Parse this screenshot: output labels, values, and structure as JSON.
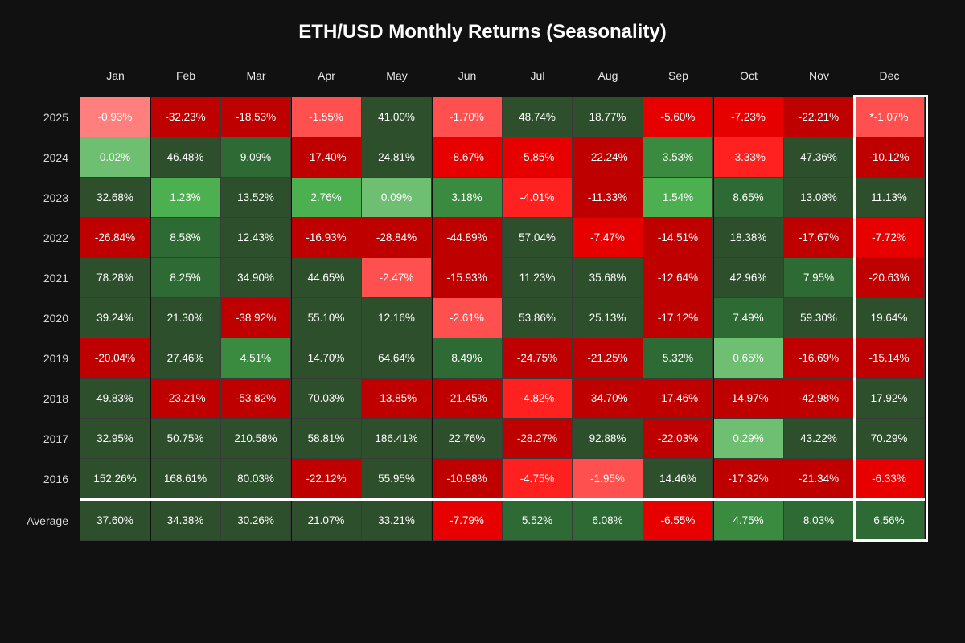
{
  "chart_data": {
    "type": "heatmap",
    "title": "ETH/USD Monthly Returns (Seasonality)",
    "columns": [
      "Jan",
      "Feb",
      "Mar",
      "Apr",
      "May",
      "Jun",
      "Jul",
      "Aug",
      "Sep",
      "Oct",
      "Nov",
      "Dec"
    ],
    "rows": [
      {
        "label": "2025",
        "values": [
          "-0.93%",
          "-32.23%",
          "-18.53%",
          "-1.55%",
          "41.00%",
          "-1.70%",
          "48.74%",
          "18.77%",
          "-5.60%",
          "-7.23%",
          "-22.21%",
          "*-1.07%"
        ]
      },
      {
        "label": "2024",
        "values": [
          "0.02%",
          "46.48%",
          "9.09%",
          "-17.40%",
          "24.81%",
          "-8.67%",
          "-5.85%",
          "-22.24%",
          "3.53%",
          "-3.33%",
          "47.36%",
          "-10.12%"
        ]
      },
      {
        "label": "2023",
        "values": [
          "32.68%",
          "1.23%",
          "13.52%",
          "2.76%",
          "0.09%",
          "3.18%",
          "-4.01%",
          "-11.33%",
          "1.54%",
          "8.65%",
          "13.08%",
          "11.13%"
        ]
      },
      {
        "label": "2022",
        "values": [
          "-26.84%",
          "8.58%",
          "12.43%",
          "-16.93%",
          "-28.84%",
          "-44.89%",
          "57.04%",
          "-7.47%",
          "-14.51%",
          "18.38%",
          "-17.67%",
          "-7.72%"
        ]
      },
      {
        "label": "2021",
        "values": [
          "78.28%",
          "8.25%",
          "34.90%",
          "44.65%",
          "-2.47%",
          "-15.93%",
          "11.23%",
          "35.68%",
          "-12.64%",
          "42.96%",
          "7.95%",
          "-20.63%"
        ]
      },
      {
        "label": "2020",
        "values": [
          "39.24%",
          "21.30%",
          "-38.92%",
          "55.10%",
          "12.16%",
          "-2.61%",
          "53.86%",
          "25.13%",
          "-17.12%",
          "7.49%",
          "59.30%",
          "19.64%"
        ]
      },
      {
        "label": "2019",
        "values": [
          "-20.04%",
          "27.46%",
          "4.51%",
          "14.70%",
          "64.64%",
          "8.49%",
          "-24.75%",
          "-21.25%",
          "5.32%",
          "0.65%",
          "-16.69%",
          "-15.14%"
        ]
      },
      {
        "label": "2018",
        "values": [
          "49.83%",
          "-23.21%",
          "-53.82%",
          "70.03%",
          "-13.85%",
          "-21.45%",
          "-4.82%",
          "-34.70%",
          "-17.46%",
          "-14.97%",
          "-42.98%",
          "17.92%"
        ]
      },
      {
        "label": "2017",
        "values": [
          "32.95%",
          "50.75%",
          "210.58%",
          "58.81%",
          "186.41%",
          "22.76%",
          "-28.27%",
          "92.88%",
          "-22.03%",
          "0.29%",
          "43.22%",
          "70.29%"
        ]
      },
      {
        "label": "2016",
        "values": [
          "152.26%",
          "168.61%",
          "80.03%",
          "-22.12%",
          "55.95%",
          "-10.98%",
          "-4.75%",
          "-1.95%",
          "14.46%",
          "-17.32%",
          "-21.34%",
          "-6.33%"
        ]
      },
      {
        "label": "Average",
        "values": [
          "37.60%",
          "34.38%",
          "30.26%",
          "21.07%",
          "33.21%",
          "-7.79%",
          "5.52%",
          "6.08%",
          "-6.55%",
          "4.75%",
          "8.03%",
          "6.56%"
        ]
      }
    ],
    "highlighted_column": "Dec",
    "colors": {
      "strong_gain": "#2d4f2c",
      "gain": "#2e6b34",
      "mid_gain": "#3a8a3f",
      "small_gain": "#4caf50",
      "tiny_gain": "#6fbf73",
      "tiny_loss": "#ff7f7f",
      "small_loss": "#ff5050",
      "mid_loss": "#ff2020",
      "loss": "#e60000",
      "strong_loss": "#bf0000",
      "background": "#111111",
      "highlight": "#ffffff"
    }
  }
}
